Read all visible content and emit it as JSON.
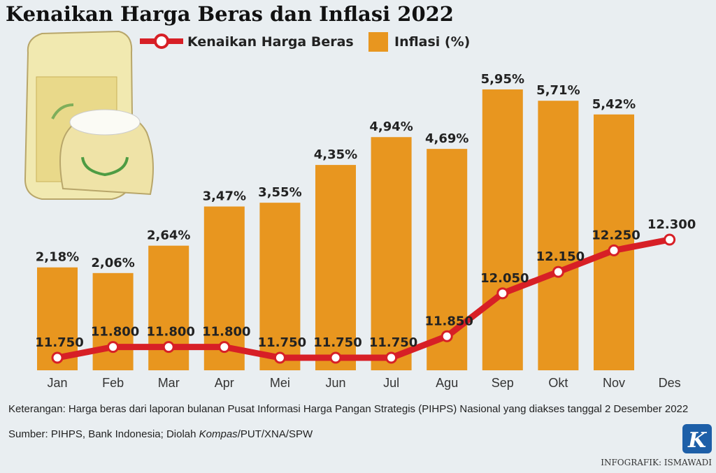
{
  "chart_data": {
    "type": "bar",
    "title": "Kenaikan Harga Beras dan Inflasi 2022",
    "categories": [
      "Jan",
      "Feb",
      "Mar",
      "Apr",
      "Mei",
      "Jun",
      "Jul",
      "Agu",
      "Sep",
      "Okt",
      "Nov",
      "Des"
    ],
    "series": [
      {
        "name": "Kenaikan Harga Beras",
        "type": "line",
        "color": "#d71f26",
        "values": [
          11750,
          11800,
          11800,
          11800,
          11750,
          11750,
          11750,
          11850,
          12050,
          12150,
          12250,
          12300
        ],
        "value_labels": [
          "11.750",
          "11.800",
          "11.800",
          "11.800",
          "11.750",
          "11.750",
          "11.750",
          "11.850",
          "12.050",
          "12.150",
          "12.250",
          "12.300"
        ]
      },
      {
        "name": "Inflasi (%)",
        "type": "bar",
        "color": "#e8961f",
        "values": [
          2.18,
          2.06,
          2.64,
          3.47,
          3.55,
          4.35,
          4.94,
          4.69,
          5.95,
          5.71,
          5.42,
          null
        ],
        "value_labels": [
          "2,18%",
          "2,06%",
          "2,64%",
          "3,47%",
          "3,55%",
          "4,35%",
          "4,94%",
          "4,69%",
          "5,95%",
          "5,71%",
          "5,42%",
          null
        ]
      }
    ],
    "note": "Keterangan: Harga beras dari laporan bulanan Pusat Informasi Harga Pangan Strategis (PIHPS) Nasional yang diakses tanggal 2 Desember 2022",
    "source": [
      "Sumber: PIHPS, Bank Indonesia; Diolah ",
      "Kompas",
      "/PUT/XNA/SPW"
    ],
    "logo": "K",
    "credit": "INFOGRAFIK: ISMAWADI"
  }
}
